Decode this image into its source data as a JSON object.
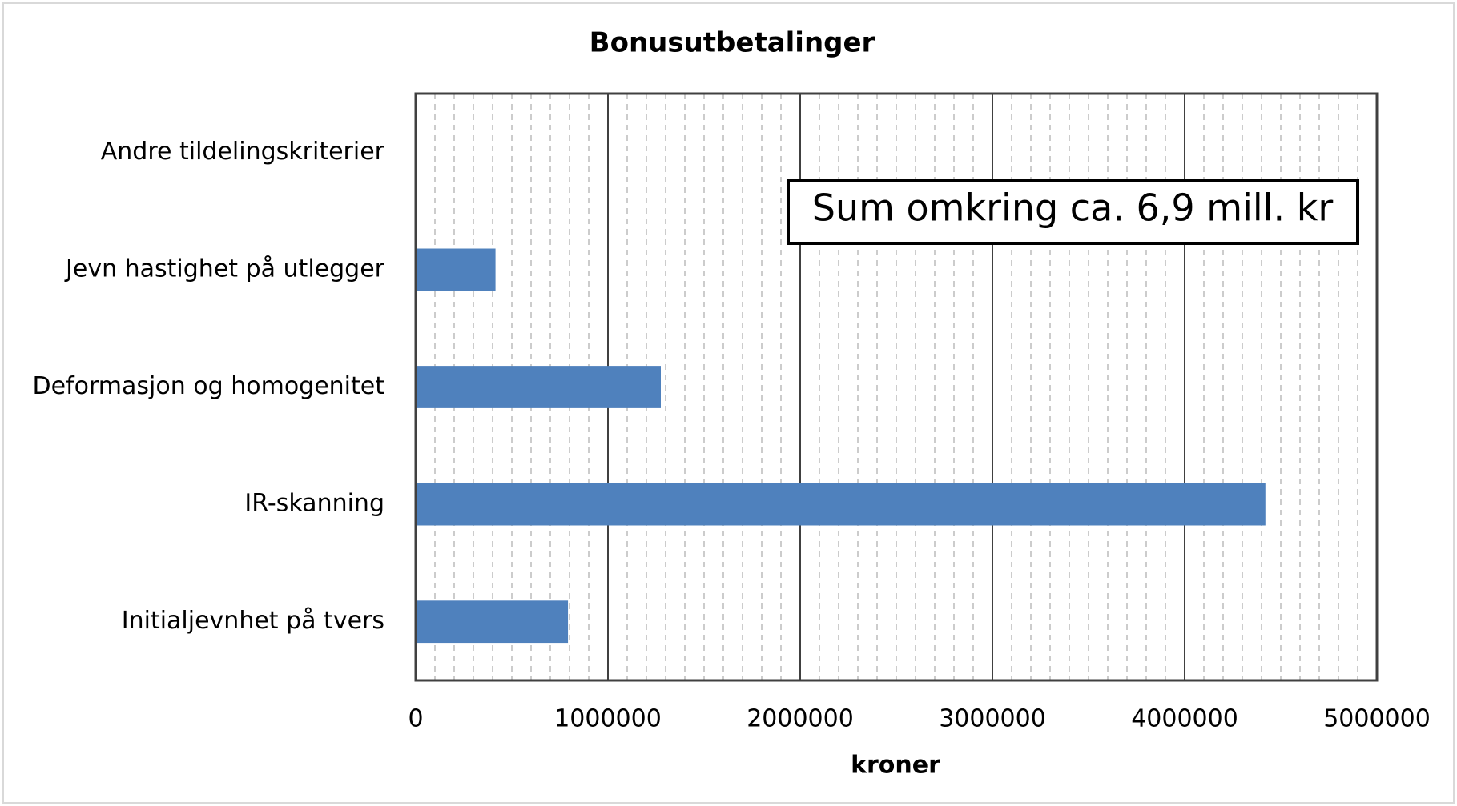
{
  "chart_data": {
    "type": "barh",
    "title": "Bonusutbetalinger",
    "categories": [
      "Andre tildelingskriterier",
      "Jevn hastighet på utlegger",
      "Deformasjon og homogenitet",
      "IR-skanning",
      "Initialjevnhet på tvers"
    ],
    "values": [
      0,
      415000,
      1275000,
      4420000,
      792000
    ],
    "color": "#4f81bd",
    "xlabel": "kroner",
    "xlim": [
      0,
      5000000
    ],
    "xticks": [
      0,
      1000000,
      2000000,
      3000000,
      4000000,
      5000000
    ],
    "grid": true,
    "minor_grid": true,
    "xminor_step": 100000,
    "annotation": "Sum omkring ca. 6,9 mill. kr"
  }
}
